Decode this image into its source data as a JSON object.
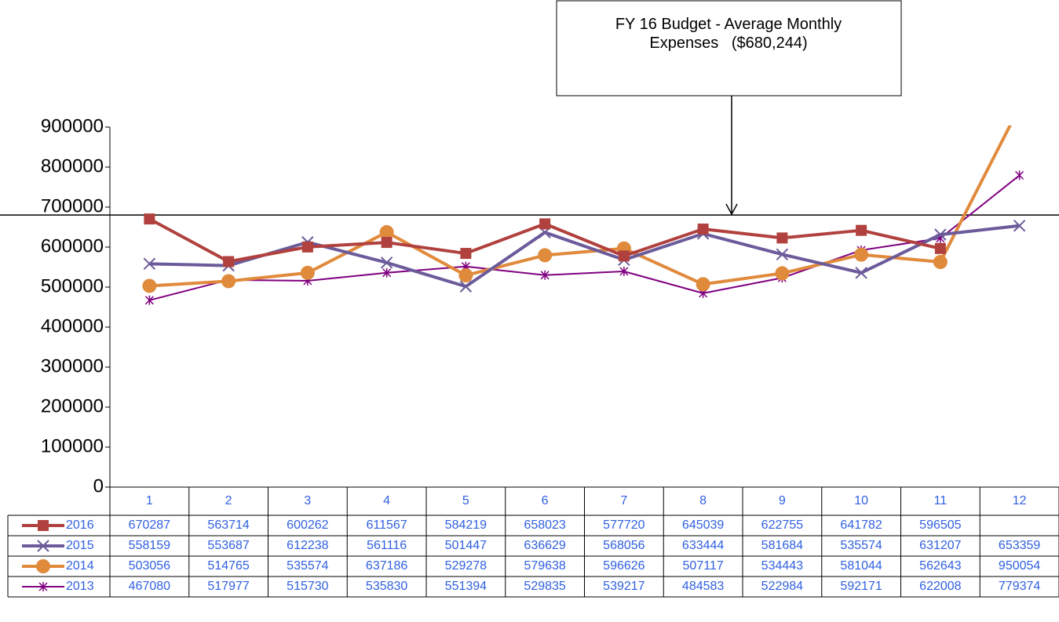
{
  "chart_data": {
    "type": "line",
    "annotation": "FY 16 Budget - Average Monthly Expenses   ($680,244)",
    "reference_line": 680244,
    "categories": [
      "1",
      "2",
      "3",
      "4",
      "5",
      "6",
      "7",
      "8",
      "9",
      "10",
      "11",
      "12"
    ],
    "series": [
      {
        "name": "2016",
        "color": "#b0413e",
        "marker": "square",
        "values": [
          670287,
          563714,
          600262,
          611567,
          584219,
          658023,
          577720,
          645039,
          622755,
          641782,
          596505,
          null
        ]
      },
      {
        "name": "2015",
        "color": "#6b5b9a",
        "marker": "x",
        "values": [
          558159,
          553687,
          612238,
          561116,
          501447,
          636629,
          568056,
          633444,
          581684,
          535574,
          631207,
          653359
        ]
      },
      {
        "name": "2014",
        "color": "#e08a3c",
        "marker": "circle",
        "values": [
          503056,
          514765,
          535574,
          637186,
          529278,
          579638,
          596626,
          507117,
          534443,
          581044,
          562643,
          950054
        ]
      },
      {
        "name": "2013",
        "color": "#800080",
        "marker": "star",
        "values": [
          467080,
          517977,
          515730,
          535830,
          551394,
          529835,
          539217,
          484583,
          522984,
          592171,
          622008,
          779374
        ]
      }
    ],
    "ylim": [
      0,
      900000
    ],
    "yticks": [
      0,
      100000,
      200000,
      300000,
      400000,
      500000,
      600000,
      700000,
      800000,
      900000
    ]
  }
}
